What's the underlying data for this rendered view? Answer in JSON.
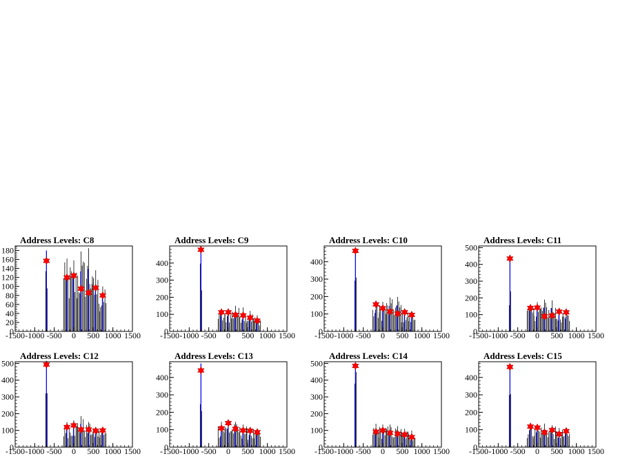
{
  "chart_data": [
    {
      "type": "histogram",
      "title": "Address Levels: C8",
      "xlim": [
        -1500,
        1500
      ],
      "ylim": [
        0,
        190
      ],
      "x_ticks": [
        "-1500",
        "-1000",
        "-500",
        "0",
        "500",
        "1000",
        "1500"
      ],
      "y_ticks": [
        "0",
        "20",
        "40",
        "60",
        "80",
        "100",
        "120",
        "140",
        "160",
        "180"
      ],
      "peak_clusters": [
        {
          "x": -700,
          "height": 180,
          "marker": 157
        },
        {
          "x": -175,
          "height": 162,
          "marker": 120
        },
        {
          "x": 0,
          "height": 158,
          "marker": 124
        },
        {
          "x": 185,
          "height": 178,
          "marker": 95
        },
        {
          "x": 380,
          "height": 185,
          "marker": 86
        },
        {
          "x": 560,
          "height": 136,
          "marker": 97
        },
        {
          "x": 740,
          "height": 100,
          "marker": 80
        }
      ]
    },
    {
      "type": "histogram",
      "title": "Address Levels: C9",
      "xlim": [
        -1500,
        1500
      ],
      "ylim": [
        0,
        500
      ],
      "x_ticks": [
        "-1500",
        "-1000",
        "-500",
        "0",
        "500",
        "1000",
        "1500"
      ],
      "y_ticks": [
        "0",
        "100",
        "200",
        "300",
        "400"
      ],
      "peak_clusters": [
        {
          "x": -700,
          "height": 495,
          "marker": 478
        },
        {
          "x": -175,
          "height": 120,
          "marker": 112
        },
        {
          "x": 0,
          "height": 128,
          "marker": 112
        },
        {
          "x": 185,
          "height": 150,
          "marker": 97
        },
        {
          "x": 380,
          "height": 140,
          "marker": 94
        },
        {
          "x": 560,
          "height": 120,
          "marker": 80
        },
        {
          "x": 740,
          "height": 95,
          "marker": 63
        }
      ]
    },
    {
      "type": "histogram",
      "title": "Address Levels: C10",
      "xlim": [
        -1500,
        1500
      ],
      "ylim": [
        0,
        490
      ],
      "x_ticks": [
        "-1500",
        "-1000",
        "-500",
        "0",
        "500",
        "1000",
        "1500"
      ],
      "y_ticks": [
        "0",
        "100",
        "200",
        "300",
        "400"
      ],
      "peak_clusters": [
        {
          "x": -700,
          "height": 470,
          "marker": 462
        },
        {
          "x": -175,
          "height": 165,
          "marker": 155
        },
        {
          "x": 0,
          "height": 170,
          "marker": 133
        },
        {
          "x": 185,
          "height": 195,
          "marker": 114
        },
        {
          "x": 380,
          "height": 198,
          "marker": 102
        },
        {
          "x": 560,
          "height": 130,
          "marker": 110
        },
        {
          "x": 740,
          "height": 110,
          "marker": 95
        }
      ]
    },
    {
      "type": "histogram",
      "title": "Address Levels: C11",
      "xlim": [
        -1500,
        1500
      ],
      "ylim": [
        0,
        510
      ],
      "x_ticks": [
        "-1500",
        "-1000",
        "-500",
        "0",
        "500",
        "1000",
        "1500"
      ],
      "y_ticks": [
        "0",
        "100",
        "200",
        "300",
        "400",
        "500"
      ],
      "peak_clusters": [
        {
          "x": -700,
          "height": 440,
          "marker": 435
        },
        {
          "x": -175,
          "height": 160,
          "marker": 140
        },
        {
          "x": 0,
          "height": 175,
          "marker": 142
        },
        {
          "x": 185,
          "height": 190,
          "marker": 90
        },
        {
          "x": 380,
          "height": 185,
          "marker": 95
        },
        {
          "x": 560,
          "height": 130,
          "marker": 118
        },
        {
          "x": 740,
          "height": 115,
          "marker": 114
        }
      ]
    },
    {
      "type": "histogram",
      "title": "Address Levels: C12",
      "xlim": [
        -1500,
        1500
      ],
      "ylim": [
        0,
        510
      ],
      "x_ticks": [
        "-1500",
        "-1000",
        "-500",
        "0",
        "500",
        "1000",
        "1500"
      ],
      "y_ticks": [
        "0",
        "100",
        "200",
        "300",
        "400",
        "500"
      ],
      "peak_clusters": [
        {
          "x": -700,
          "height": 505,
          "marker": 493
        },
        {
          "x": -175,
          "height": 150,
          "marker": 120
        },
        {
          "x": 0,
          "height": 160,
          "marker": 130
        },
        {
          "x": 185,
          "height": 185,
          "marker": 105
        },
        {
          "x": 380,
          "height": 150,
          "marker": 105
        },
        {
          "x": 560,
          "height": 120,
          "marker": 98
        },
        {
          "x": 740,
          "height": 110,
          "marker": 100
        }
      ]
    },
    {
      "type": "histogram",
      "title": "Address Levels: C13",
      "xlim": [
        -1500,
        1500
      ],
      "ylim": [
        0,
        490
      ],
      "x_ticks": [
        "-1500",
        "-1000",
        "-500",
        "0",
        "500",
        "1000",
        "1500"
      ],
      "y_ticks": [
        "0",
        "100",
        "200",
        "300",
        "400"
      ],
      "peak_clusters": [
        {
          "x": -700,
          "height": 480,
          "marker": 440
        },
        {
          "x": -175,
          "height": 145,
          "marker": 108
        },
        {
          "x": 0,
          "height": 150,
          "marker": 138
        },
        {
          "x": 185,
          "height": 145,
          "marker": 105
        },
        {
          "x": 380,
          "height": 130,
          "marker": 96
        },
        {
          "x": 560,
          "height": 115,
          "marker": 94
        },
        {
          "x": 740,
          "height": 95,
          "marker": 86
        }
      ]
    },
    {
      "type": "histogram",
      "title": "Address Levels: C14",
      "xlim": [
        -1500,
        1500
      ],
      "ylim": [
        0,
        510
      ],
      "x_ticks": [
        "-1500",
        "-1000",
        "-500",
        "0",
        "500",
        "1000",
        "1500"
      ],
      "y_ticks": [
        "0",
        "100",
        "200",
        "300",
        "400",
        "500"
      ],
      "peak_clusters": [
        {
          "x": -700,
          "height": 505,
          "marker": 485
        },
        {
          "x": -175,
          "height": 140,
          "marker": 92
        },
        {
          "x": 0,
          "height": 135,
          "marker": 100
        },
        {
          "x": 185,
          "height": 135,
          "marker": 85
        },
        {
          "x": 380,
          "height": 125,
          "marker": 80
        },
        {
          "x": 560,
          "height": 110,
          "marker": 75
        },
        {
          "x": 740,
          "height": 100,
          "marker": 60
        }
      ]
    },
    {
      "type": "histogram",
      "title": "Address Levels: C15",
      "xlim": [
        -1500,
        1500
      ],
      "ylim": [
        0,
        490
      ],
      "x_ticks": [
        "-1500",
        "-1000",
        "-500",
        "0",
        "500",
        "1000",
        "1500"
      ],
      "y_ticks": [
        "0",
        "100",
        "200",
        "300",
        "400"
      ],
      "peak_clusters": [
        {
          "x": -700,
          "height": 470,
          "marker": 460
        },
        {
          "x": -175,
          "height": 135,
          "marker": 118
        },
        {
          "x": 0,
          "height": 130,
          "marker": 112
        },
        {
          "x": 185,
          "height": 135,
          "marker": 85
        },
        {
          "x": 380,
          "height": 125,
          "marker": 98
        },
        {
          "x": 560,
          "height": 110,
          "marker": 75
        },
        {
          "x": 740,
          "height": 100,
          "marker": 92
        }
      ]
    }
  ],
  "colors": {
    "histogram_black": "#000000",
    "histogram_blue": "#0000ff",
    "marker_red": "#ff0000",
    "axis": "#000000"
  }
}
